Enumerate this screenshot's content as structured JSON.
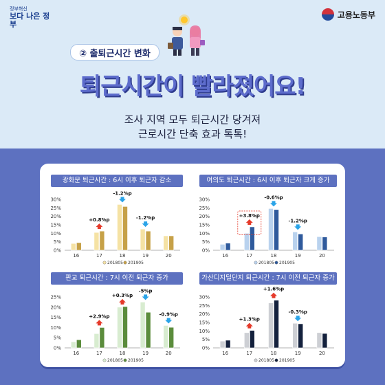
{
  "header": {
    "gov_logo_small": "정부혁신",
    "gov_logo_big": "보다 나은 정부",
    "ministry": "고용노동부",
    "section_label": "② 출퇴근시간 변화",
    "main_title": "퇴근시간이 빨라졌어요!",
    "subtitle_1": "조사 지역 모두 퇴근시간 당겨져",
    "subtitle_2": "근로시간 단축 효과 톡톡!"
  },
  "colors": {
    "accent": "#5d71c0",
    "up_arrow": "#e53a2a",
    "down_arrow": "#2ba4e8"
  },
  "chart_data": [
    {
      "type": "bar",
      "title": "광화문 퇴근시간 : 6시 이후 퇴근자 감소",
      "categories": [
        "16",
        "17",
        "18",
        "19",
        "20"
      ],
      "ylim": [
        0,
        30
      ],
      "yticks": [
        "0%",
        "5%",
        "10%",
        "15%",
        "20%",
        "25%",
        "30%"
      ],
      "series": [
        {
          "name": "201805",
          "values": [
            4,
            10.5,
            27,
            12.5,
            8.5
          ],
          "color": "#f5e2a4"
        },
        {
          "name": "201905",
          "values": [
            4.5,
            11.3,
            25.8,
            11.3,
            8.5
          ],
          "color": "#c6a148"
        }
      ],
      "annotations": [
        {
          "category": "17",
          "text": "+0.8%p",
          "dir": "up"
        },
        {
          "category": "18",
          "text": "-1.2%p",
          "dir": "down"
        },
        {
          "category": "19",
          "text": "-1.2%p",
          "dir": "down"
        }
      ]
    },
    {
      "type": "bar",
      "title": "여의도 퇴근시간 : 6시 이후 퇴근자 크게 증가",
      "categories": [
        "16",
        "17",
        "18",
        "19",
        "20"
      ],
      "ylim": [
        0,
        30
      ],
      "yticks": [
        "0%",
        "5%",
        "10%",
        "15%",
        "20%",
        "25%",
        "30%"
      ],
      "series": [
        {
          "name": "201805",
          "values": [
            3.5,
            10,
            24.6,
            10.8,
            8
          ],
          "color": "#b9d2ee"
        },
        {
          "name": "201905",
          "values": [
            4.2,
            13.8,
            24,
            9.6,
            7.8
          ],
          "color": "#2f5a9c"
        }
      ],
      "annotations": [
        {
          "category": "17",
          "text": "+3.8%p",
          "dir": "up",
          "highlight": true
        },
        {
          "category": "18",
          "text": "-0.6%p",
          "dir": "down"
        },
        {
          "category": "19",
          "text": "-1.2%p",
          "dir": "down"
        }
      ]
    },
    {
      "type": "bar",
      "title": "판교 퇴근시간 : 7시 이전 퇴근자 증가",
      "categories": [
        "16",
        "17",
        "18",
        "19",
        "20"
      ],
      "ylim": [
        0,
        25
      ],
      "yticks": [
        "0%",
        "5%",
        "10%",
        "15%",
        "20%",
        "25%"
      ],
      "series": [
        {
          "name": "201805",
          "values": [
            3,
            7,
            20,
            22.5,
            11
          ],
          "color": "#d8ecd0"
        },
        {
          "name": "201905",
          "values": [
            4,
            10,
            20.3,
            17.5,
            10.1
          ],
          "color": "#5b8c3c"
        }
      ],
      "annotations": [
        {
          "category": "17",
          "text": "+2.9%p",
          "dir": "up"
        },
        {
          "category": "18",
          "text": "+0.3%p",
          "dir": "up"
        },
        {
          "category": "19",
          "text": "-5%p",
          "dir": "down"
        },
        {
          "category": "20",
          "text": "-0.9%p",
          "dir": "down"
        }
      ]
    },
    {
      "type": "bar",
      "title": "가산디지털단지 퇴근시간 : 7시 이전 퇴근자 증가",
      "categories": [
        "16",
        "17",
        "18",
        "19",
        "20"
      ],
      "ylim": [
        0,
        30
      ],
      "yticks": [
        "0%",
        "5%",
        "10%",
        "15%",
        "20%",
        "25%",
        "30%"
      ],
      "series": [
        {
          "name": "201805",
          "values": [
            4,
            9,
            26.5,
            14.5,
            9
          ],
          "color": "#cdcfd4"
        },
        {
          "name": "201905",
          "values": [
            4.5,
            10.3,
            28.1,
            14.2,
            8.5
          ],
          "color": "#14213d"
        }
      ],
      "annotations": [
        {
          "category": "17",
          "text": "+1.3%p",
          "dir": "up"
        },
        {
          "category": "18",
          "text": "+1.6%p",
          "dir": "up"
        },
        {
          "category": "19",
          "text": "-0.3%p",
          "dir": "down"
        }
      ]
    }
  ]
}
